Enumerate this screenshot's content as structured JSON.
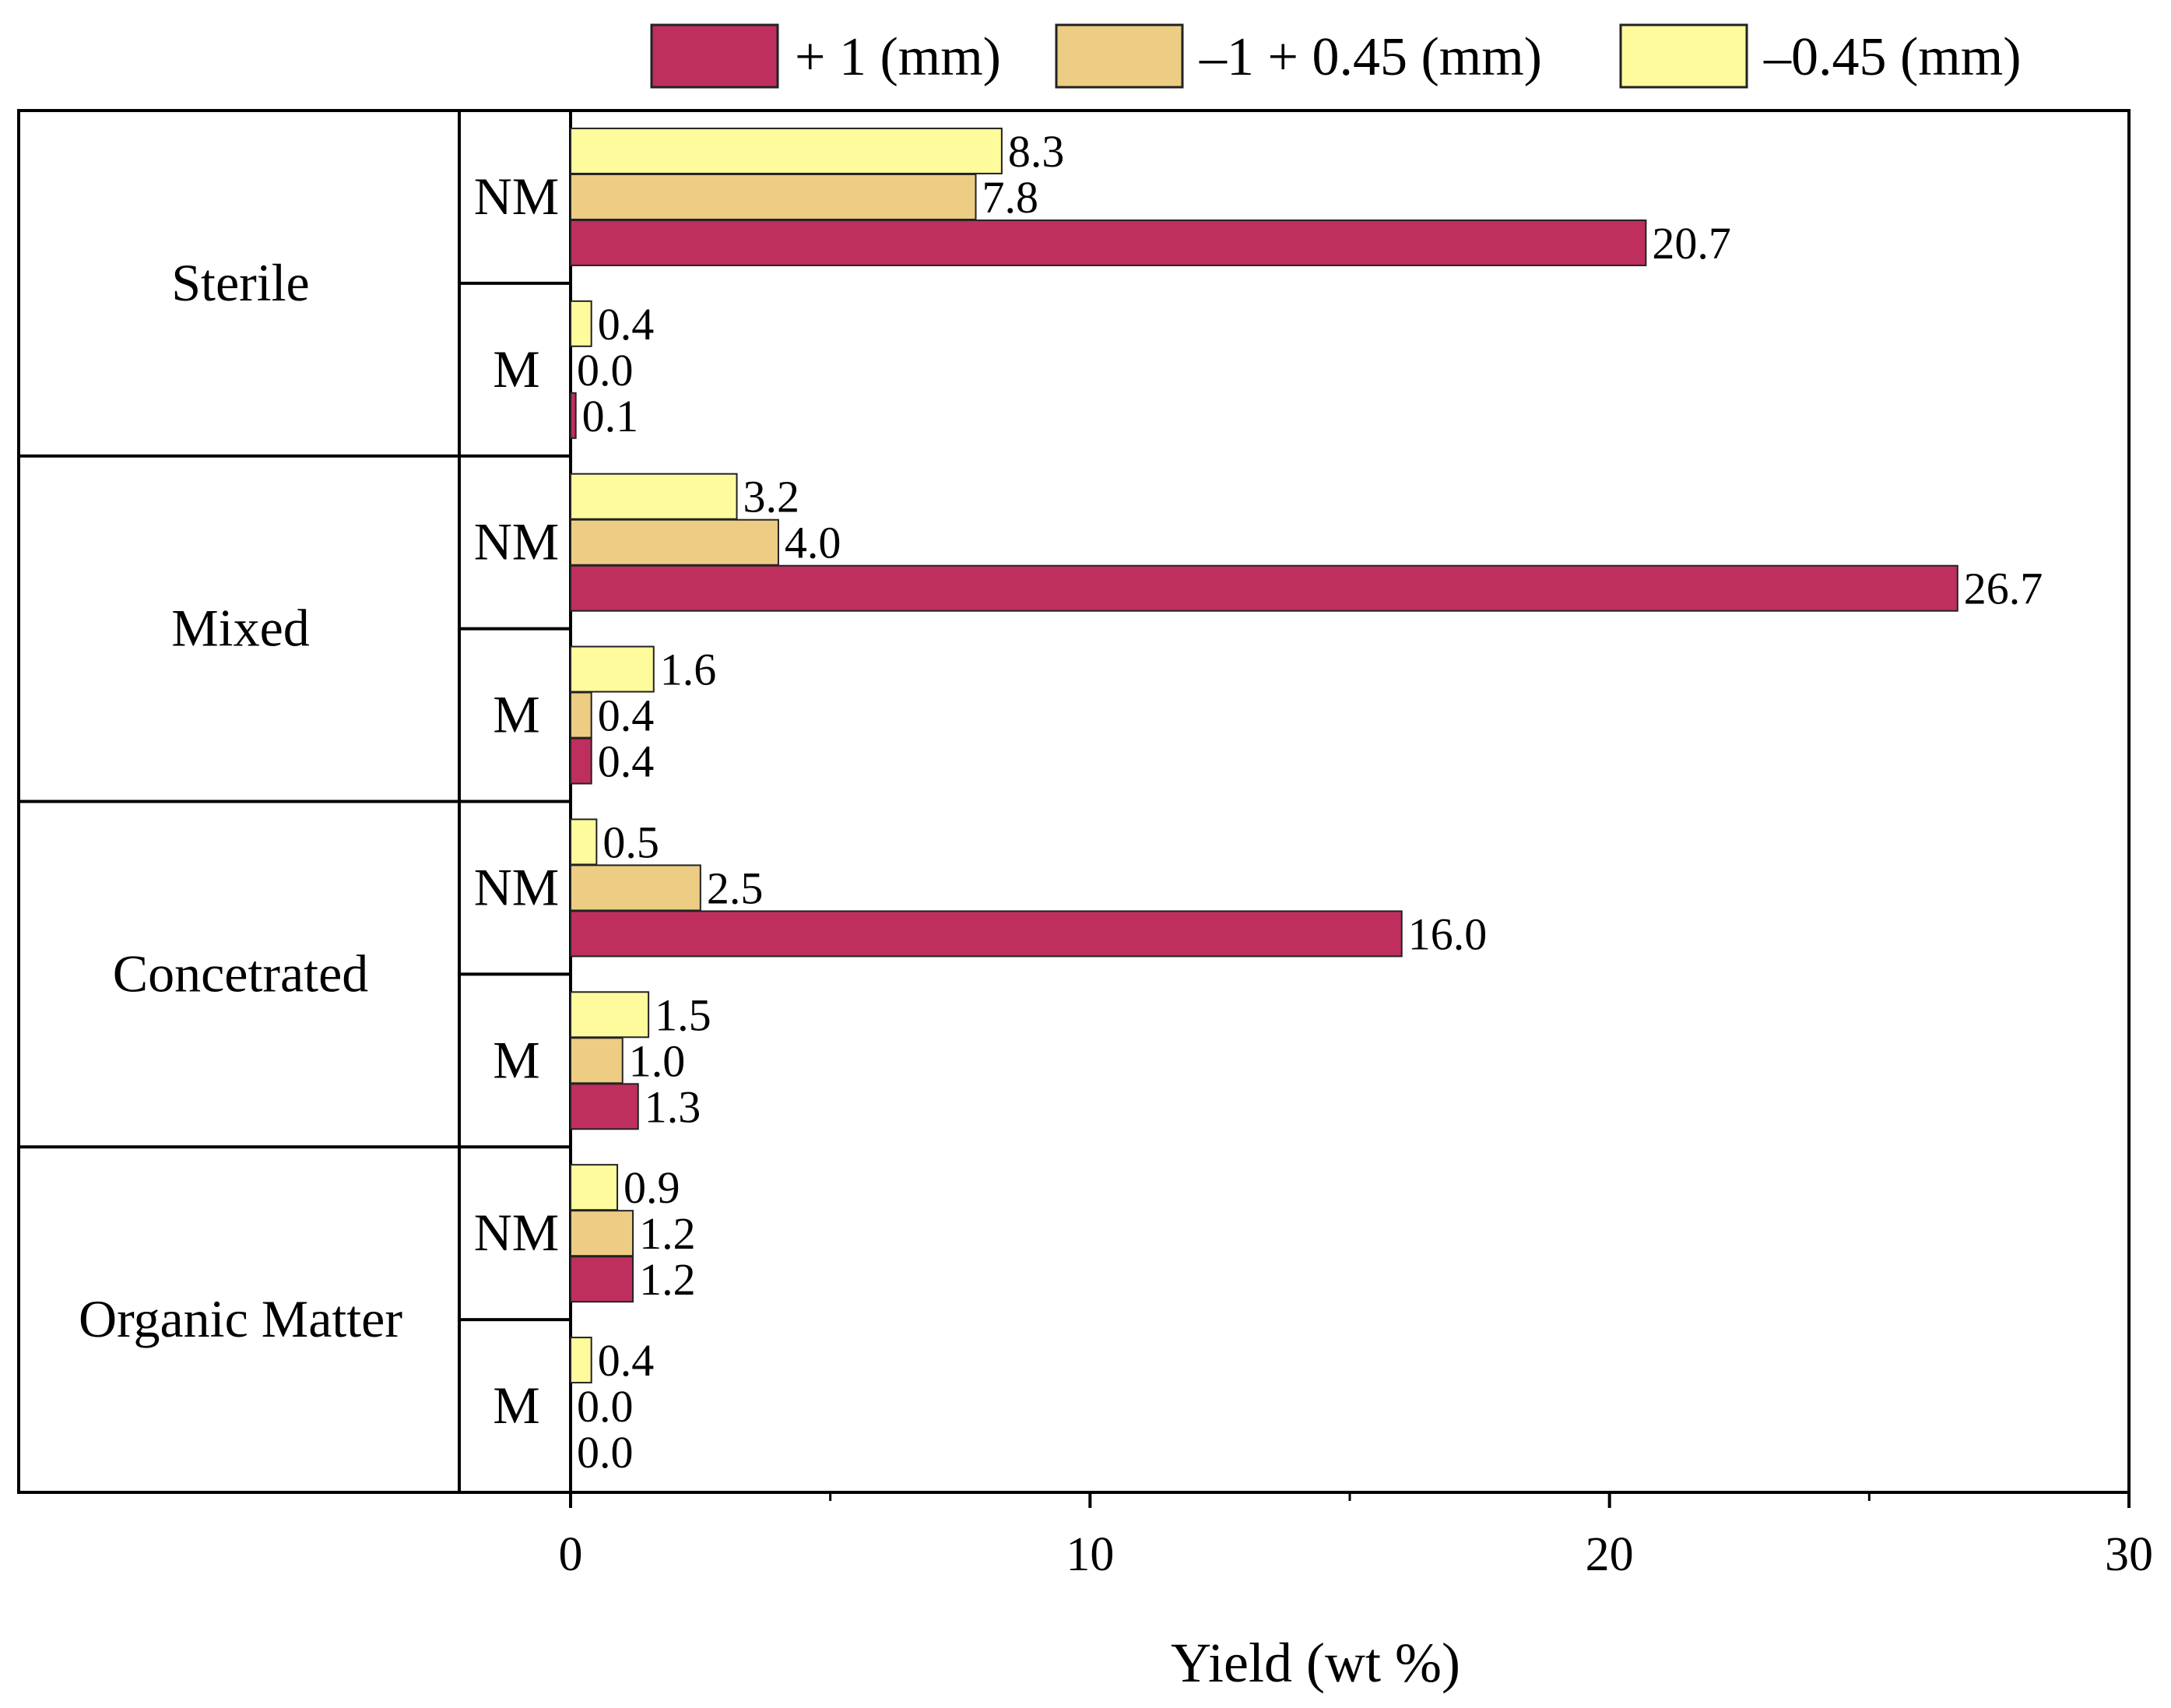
{
  "chart_data": {
    "type": "bar",
    "orientation": "horizontal",
    "xlabel": "Yield (wt %)",
    "xlim": [
      0,
      30
    ],
    "major_ticks": [
      0,
      10,
      20,
      30
    ],
    "minor_ticks": [
      5,
      15,
      25
    ],
    "legend_position": "top",
    "series": [
      {
        "name": "+ 1 (mm)",
        "color": "#BE2F5E"
      },
      {
        "name": "–1  + 0.45 (mm)",
        "color": "#EDCD84"
      },
      {
        "name": "–0.45 (mm)",
        "color": "#FEFB9D"
      }
    ],
    "groups": [
      {
        "name": "Sterile",
        "subgroups": [
          {
            "label": "NM",
            "values": [
              20.7,
              7.8,
              8.3
            ],
            "labels": [
              "20.7",
              "7.8",
              "8.3"
            ]
          },
          {
            "label": "M",
            "values": [
              0.1,
              0.0,
              0.4
            ],
            "labels": [
              "0.1",
              "0.0",
              "0.4"
            ]
          }
        ]
      },
      {
        "name": "Mixed",
        "subgroups": [
          {
            "label": "NM",
            "values": [
              26.7,
              4.0,
              3.2
            ],
            "labels": [
              "26.7",
              "4.0",
              "3.2"
            ]
          },
          {
            "label": "M",
            "values": [
              0.4,
              0.4,
              1.6
            ],
            "labels": [
              "0.4",
              "0.4",
              "1.6"
            ]
          }
        ]
      },
      {
        "name": "Concetrated",
        "subgroups": [
          {
            "label": "NM",
            "values": [
              16.0,
              2.5,
              0.5
            ],
            "labels": [
              "16.0",
              "2.5",
              "0.5"
            ]
          },
          {
            "label": "M",
            "values": [
              1.3,
              1.0,
              1.5
            ],
            "labels": [
              "1.3",
              "1.0",
              "1.5"
            ]
          }
        ]
      },
      {
        "name": "Organic Matter",
        "subgroups": [
          {
            "label": "NM",
            "values": [
              1.2,
              1.2,
              0.9
            ],
            "labels": [
              "1.2",
              "1.2",
              "0.9"
            ]
          },
          {
            "label": "M",
            "values": [
              0.0,
              0.0,
              0.4
            ],
            "labels": [
              "0.0",
              "0.0",
              "0.4"
            ]
          }
        ]
      }
    ]
  }
}
